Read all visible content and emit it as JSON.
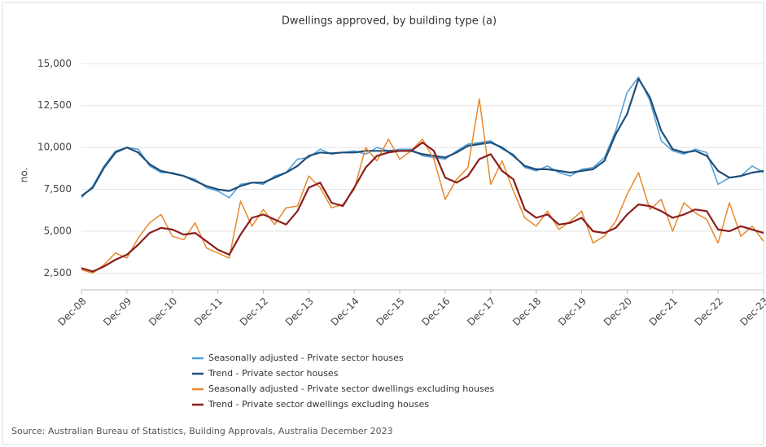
{
  "chart_data": {
    "type": "line",
    "title": "Dwellings approved, by building type (a)",
    "y_label": "no.",
    "source": "Source: Australian Bureau of Statistics, Building Approvals, Australia December 2023",
    "categories": [
      "Dec-08",
      null,
      null,
      null,
      "Dec-09",
      null,
      null,
      null,
      "Dec-10",
      null,
      null,
      null,
      "Dec-11",
      null,
      null,
      null,
      "Dec-12",
      null,
      null,
      null,
      "Dec-13",
      null,
      null,
      null,
      "Dec-14",
      null,
      null,
      null,
      "Dec-15",
      null,
      null,
      null,
      "Dec-16",
      null,
      null,
      null,
      "Dec-17",
      null,
      null,
      null,
      "Dec-18",
      null,
      null,
      null,
      "Dec-19",
      null,
      null,
      null,
      "Dec-20",
      null,
      null,
      null,
      "Dec-21",
      null,
      null,
      null,
      "Dec-22",
      null,
      null,
      null,
      "Dec-23"
    ],
    "ylim": [
      1500,
      15500
    ],
    "yticks": [
      {
        "value": 2500,
        "label": "2,500"
      },
      {
        "value": 5000,
        "label": "5,000"
      },
      {
        "value": 7500,
        "label": "7,500"
      },
      {
        "value": 10000,
        "label": "10,000"
      },
      {
        "value": 12500,
        "label": "12,500"
      },
      {
        "value": 15000,
        "label": "15,000"
      }
    ],
    "grid": true,
    "legend": "bottom",
    "series": [
      {
        "name": "Seasonally adjusted - Private sector houses",
        "color": "#4f9fd9",
        "width": 1.5,
        "values": [
          7000,
          7700,
          8900,
          9800,
          10000,
          9900,
          8900,
          8500,
          8500,
          8300,
          8100,
          7600,
          7400,
          7000,
          7800,
          7900,
          7800,
          8300,
          8500,
          9300,
          9400,
          9900,
          9600,
          9700,
          9800,
          9600,
          10000,
          9800,
          9900,
          9900,
          9500,
          9400,
          9300,
          9800,
          10200,
          10300,
          10400,
          9900,
          9600,
          8800,
          8600,
          8900,
          8500,
          8300,
          8700,
          8800,
          9400,
          11000,
          13300,
          14200,
          12800,
          10400,
          9800,
          9600,
          9900,
          9700,
          7800,
          8200,
          8300,
          8900,
          8500
        ]
      },
      {
        "name": "Trend - Private sector houses",
        "color": "#1f4e79",
        "width": 2.2,
        "values": [
          7100,
          7600,
          8800,
          9700,
          10000,
          9700,
          9000,
          8600,
          8450,
          8300,
          8000,
          7700,
          7500,
          7400,
          7700,
          7900,
          7900,
          8200,
          8500,
          8900,
          9500,
          9700,
          9650,
          9700,
          9700,
          9800,
          9800,
          9800,
          9800,
          9800,
          9600,
          9500,
          9400,
          9700,
          10100,
          10200,
          10300,
          10000,
          9500,
          8900,
          8700,
          8700,
          8600,
          8500,
          8600,
          8700,
          9200,
          10800,
          12000,
          14100,
          13000,
          11000,
          9900,
          9700,
          9800,
          9500,
          8600,
          8200,
          8300,
          8500,
          8600
        ]
      },
      {
        "name": "Seasonally adjusted - Private sector dwellings excluding houses",
        "color": "#e8892c",
        "width": 1.5,
        "values": [
          2700,
          2500,
          3000,
          3700,
          3400,
          4600,
          5500,
          6000,
          4700,
          4500,
          5500,
          4000,
          3700,
          3400,
          6800,
          5300,
          6300,
          5400,
          6400,
          6500,
          8300,
          7600,
          6400,
          6600,
          7500,
          10000,
          9200,
          10500,
          9300,
          9800,
          10500,
          9300,
          6900,
          8100,
          8800,
          12900,
          7800,
          9200,
          7400,
          5800,
          5300,
          6200,
          5100,
          5600,
          6200,
          4300,
          4700,
          5600,
          7200,
          8500,
          6300,
          6900,
          5000,
          6700,
          6100,
          5700,
          4300,
          6700,
          4700,
          5300,
          4400
        ]
      },
      {
        "name": "Trend - Private sector dwellings excluding houses",
        "color": "#8b1e1e",
        "width": 2.2,
        "values": [
          2800,
          2600,
          2900,
          3300,
          3600,
          4200,
          4900,
          5200,
          5100,
          4800,
          4900,
          4400,
          3900,
          3600,
          4800,
          5800,
          6000,
          5700,
          5400,
          6200,
          7600,
          7900,
          6700,
          6500,
          7600,
          8800,
          9500,
          9700,
          9800,
          9800,
          10300,
          9800,
          8200,
          7900,
          8300,
          9300,
          9600,
          8600,
          8100,
          6300,
          5800,
          6000,
          5400,
          5500,
          5800,
          5000,
          4900,
          5200,
          6000,
          6600,
          6500,
          6200,
          5800,
          6000,
          6300,
          6200,
          5100,
          5000,
          5300,
          5100,
          4900
        ]
      }
    ]
  }
}
